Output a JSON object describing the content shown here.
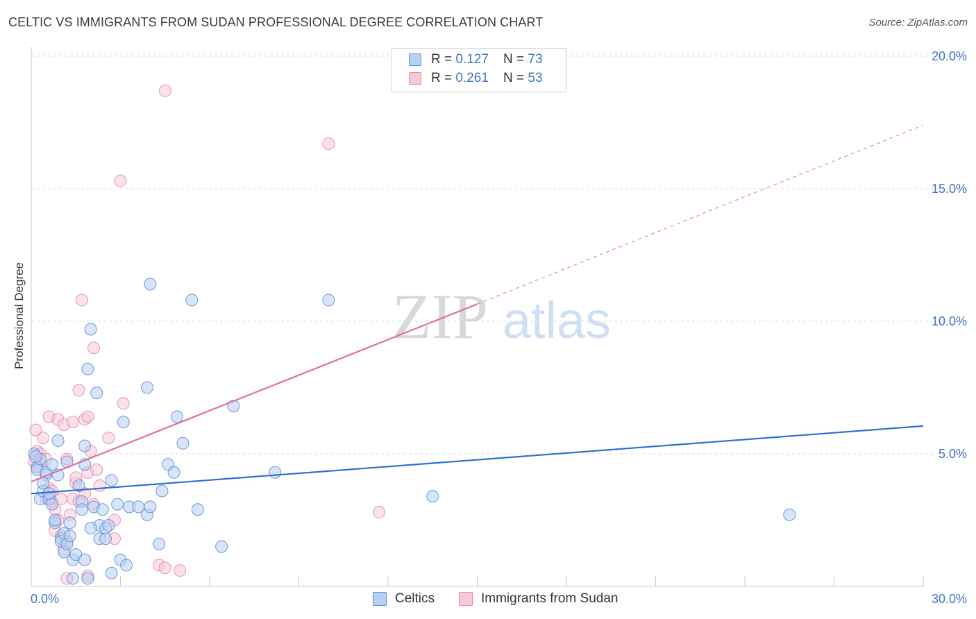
{
  "header": {
    "title": "CELTIC VS IMMIGRANTS FROM SUDAN PROFESSIONAL DEGREE CORRELATION CHART",
    "source": "Source: ZipAtlas.com"
  },
  "watermark": {
    "zip": "ZIP",
    "atlas": "atlas"
  },
  "legend": {
    "rows": [
      {
        "r_label": "R = ",
        "r_value": "0.127",
        "n_label": "N = ",
        "n_value": "73",
        "color": "#5b8ed8"
      },
      {
        "r_label": "R = ",
        "r_value": "0.261",
        "n_label": "N = ",
        "n_value": "53",
        "color": "#e58aa8"
      }
    ]
  },
  "bottom_legend": {
    "series1": "Celtics",
    "series2": "Immigrants from Sudan"
  },
  "chart_data": {
    "type": "scatter",
    "title": "CELTIC VS IMMIGRANTS FROM SUDAN PROFESSIONAL DEGREE CORRELATION CHART",
    "xlabel": "",
    "ylabel": "Professional Degree",
    "xlim": [
      0,
      30
    ],
    "ylim": [
      0,
      20
    ],
    "x_tick_labels": [
      "0.0%",
      "30.0%"
    ],
    "y_ticks": [
      5,
      10,
      15,
      20
    ],
    "y_tick_labels": [
      "5.0%",
      "10.0%",
      "15.0%",
      "20.0%"
    ],
    "grid": true,
    "legend_position": "top-center",
    "colors": {
      "celtics": "#5b8ed8",
      "celtics_fill": "#b8d0f3",
      "sudan": "#e58aa8",
      "sudan_fill": "#f8c9d8",
      "celtics_line": "#2f6fd0",
      "sudan_line": "#e0709a"
    },
    "series": [
      {
        "name": "Celtics",
        "r": 0.127,
        "n": 73,
        "trend": {
          "x0": 0,
          "y0": 3.5,
          "x1": 30,
          "y1": 6.05
        },
        "points": [
          [
            0.1,
            5.0
          ],
          [
            0.2,
            4.5
          ],
          [
            0.2,
            4.4
          ],
          [
            0.3,
            4.8
          ],
          [
            0.3,
            3.3
          ],
          [
            0.4,
            3.6
          ],
          [
            0.5,
            4.2
          ],
          [
            0.5,
            4.3
          ],
          [
            0.6,
            3.3
          ],
          [
            0.6,
            3.5
          ],
          [
            0.7,
            3.1
          ],
          [
            0.7,
            4.6
          ],
          [
            0.8,
            2.4
          ],
          [
            0.8,
            2.5
          ],
          [
            0.9,
            5.5
          ],
          [
            0.9,
            4.2
          ],
          [
            1.0,
            1.8
          ],
          [
            1.0,
            1.7
          ],
          [
            1.1,
            1.3
          ],
          [
            1.1,
            2.0
          ],
          [
            1.2,
            1.6
          ],
          [
            1.2,
            4.7
          ],
          [
            1.3,
            2.4
          ],
          [
            1.4,
            1.0
          ],
          [
            1.4,
            0.3
          ],
          [
            1.5,
            1.2
          ],
          [
            1.6,
            3.8
          ],
          [
            1.7,
            3.2
          ],
          [
            1.7,
            2.9
          ],
          [
            1.8,
            1.0
          ],
          [
            1.8,
            5.3
          ],
          [
            1.8,
            4.6
          ],
          [
            1.9,
            8.2
          ],
          [
            1.9,
            0.3
          ],
          [
            2.0,
            9.7
          ],
          [
            2.1,
            3.0
          ],
          [
            2.2,
            7.3
          ],
          [
            2.3,
            2.3
          ],
          [
            2.3,
            1.8
          ],
          [
            2.4,
            2.9
          ],
          [
            2.5,
            1.8
          ],
          [
            2.5,
            2.2
          ],
          [
            2.6,
            2.3
          ],
          [
            2.7,
            0.5
          ],
          [
            2.7,
            4.0
          ],
          [
            2.9,
            3.1
          ],
          [
            3.0,
            1.0
          ],
          [
            3.1,
            6.2
          ],
          [
            3.2,
            0.8
          ],
          [
            3.3,
            3.0
          ],
          [
            3.6,
            3.0
          ],
          [
            3.9,
            2.7
          ],
          [
            3.9,
            7.5
          ],
          [
            4.0,
            11.4
          ],
          [
            4.0,
            3.0
          ],
          [
            4.3,
            1.6
          ],
          [
            4.4,
            3.6
          ],
          [
            4.6,
            4.6
          ],
          [
            4.8,
            4.3
          ],
          [
            4.9,
            6.4
          ],
          [
            5.1,
            5.4
          ],
          [
            5.4,
            10.8
          ],
          [
            5.6,
            2.9
          ],
          [
            6.4,
            1.5
          ],
          [
            6.8,
            6.8
          ],
          [
            8.2,
            4.3
          ],
          [
            10.0,
            10.8
          ],
          [
            13.5,
            3.4
          ],
          [
            25.5,
            2.7
          ],
          [
            0.15,
            4.9
          ],
          [
            0.4,
            3.9
          ],
          [
            1.3,
            1.9
          ],
          [
            2.0,
            2.2
          ]
        ]
      },
      {
        "name": "Immigrants from Sudan",
        "r": 0.261,
        "n": 53,
        "trend": {
          "x0": 0,
          "y0": 3.95,
          "x1": 15,
          "y1": 10.65
        },
        "trend_dashed": {
          "x0": 15,
          "y0": 10.65,
          "x1": 30,
          "y1": 17.4
        },
        "points": [
          [
            0.1,
            4.7
          ],
          [
            0.15,
            5.9
          ],
          [
            0.2,
            5.1
          ],
          [
            0.3,
            4.6
          ],
          [
            0.3,
            5.0
          ],
          [
            0.4,
            5.6
          ],
          [
            0.5,
            4.8
          ],
          [
            0.6,
            3.7
          ],
          [
            0.6,
            6.4
          ],
          [
            0.7,
            3.2
          ],
          [
            0.8,
            2.9
          ],
          [
            0.8,
            2.1
          ],
          [
            0.9,
            6.3
          ],
          [
            1.0,
            1.9
          ],
          [
            1.0,
            3.3
          ],
          [
            1.1,
            6.1
          ],
          [
            1.1,
            1.4
          ],
          [
            1.2,
            1.7
          ],
          [
            1.2,
            4.8
          ],
          [
            1.3,
            2.7
          ],
          [
            1.4,
            3.3
          ],
          [
            1.4,
            6.2
          ],
          [
            1.5,
            3.9
          ],
          [
            1.6,
            7.4
          ],
          [
            1.7,
            10.8
          ],
          [
            1.8,
            3.5
          ],
          [
            1.8,
            6.3
          ],
          [
            1.9,
            6.4
          ],
          [
            1.9,
            4.3
          ],
          [
            2.0,
            5.1
          ],
          [
            2.1,
            9.0
          ],
          [
            2.1,
            3.1
          ],
          [
            2.2,
            4.4
          ],
          [
            2.3,
            3.8
          ],
          [
            2.6,
            5.6
          ],
          [
            2.8,
            2.5
          ],
          [
            2.8,
            1.8
          ],
          [
            3.0,
            15.3
          ],
          [
            3.1,
            6.9
          ],
          [
            4.3,
            0.8
          ],
          [
            4.5,
            0.7
          ],
          [
            4.5,
            18.7
          ],
          [
            5.0,
            0.6
          ],
          [
            10.0,
            16.7
          ],
          [
            11.7,
            2.8
          ],
          [
            0.2,
            4.5
          ],
          [
            0.5,
            3.3
          ],
          [
            0.9,
            2.5
          ],
          [
            1.2,
            0.3
          ],
          [
            1.5,
            4.1
          ],
          [
            1.9,
            0.4
          ],
          [
            0.7,
            3.6
          ],
          [
            1.6,
            3.2
          ]
        ]
      }
    ]
  }
}
